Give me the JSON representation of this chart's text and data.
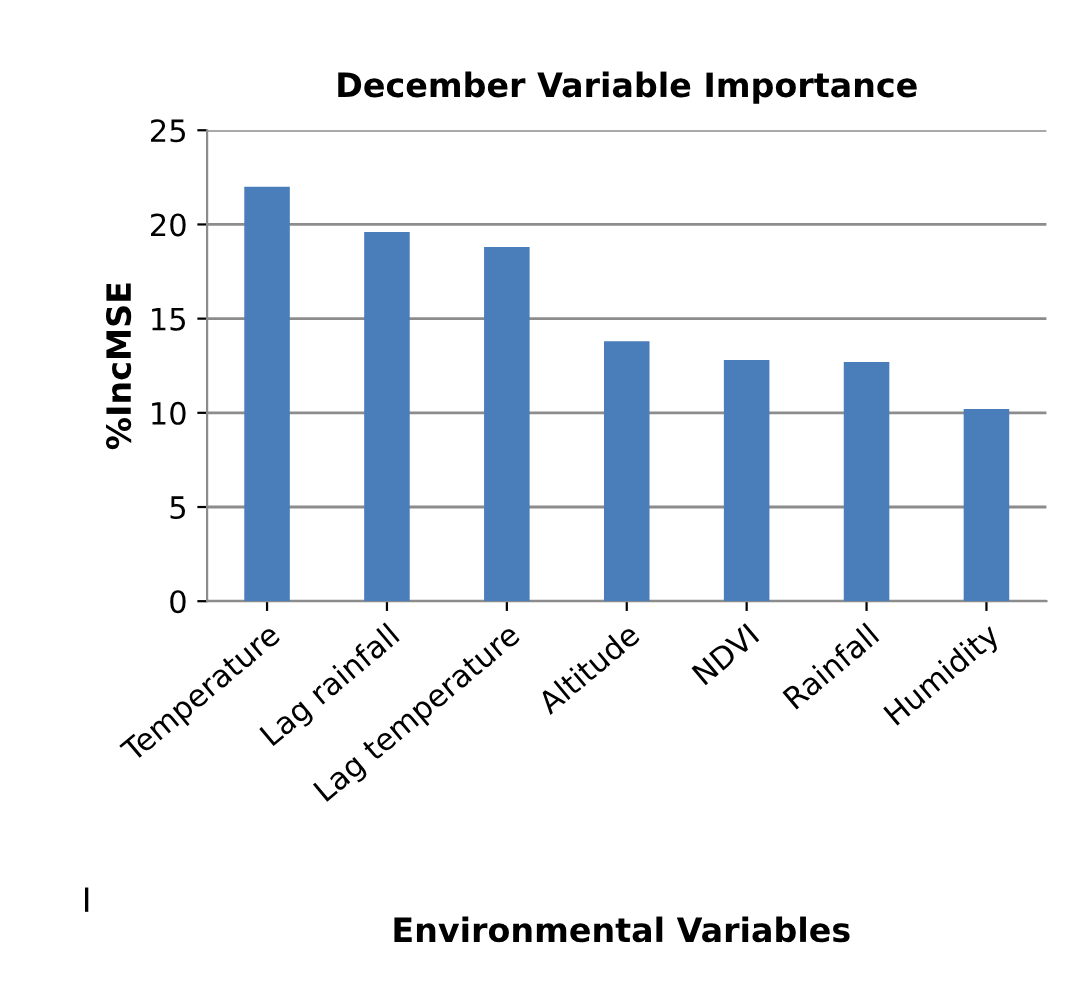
{
  "chart_data": {
    "type": "bar",
    "title": "December Variable Importance",
    "xlabel": "Environmental Variables",
    "ylabel": "%IncMSE",
    "categories": [
      "Temperature",
      "Lag rainfall",
      "Lag temperature",
      "Altitude",
      "NDVI",
      "Rainfall",
      "Humidity"
    ],
    "values": [
      22,
      19.6,
      18.8,
      13.8,
      12.8,
      12.7,
      10.2
    ],
    "color": "#4a7ebb",
    "ylim": [
      0,
      25
    ],
    "yticks": [
      0,
      5,
      10,
      15,
      20,
      25
    ],
    "grid": "y",
    "legend": false,
    "annotations": [
      "I"
    ]
  }
}
